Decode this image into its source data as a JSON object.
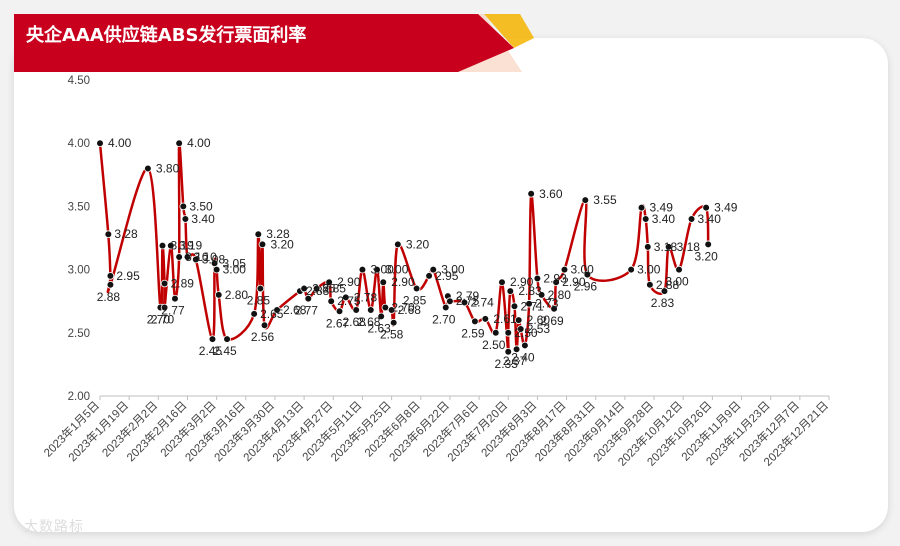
{
  "chart_data": {
    "type": "line",
    "title": "央企AAA供应链ABS发行票面利率",
    "xlabel": "",
    "ylabel": "",
    "ylim": [
      2.0,
      4.5
    ],
    "yticks": [
      "2.00",
      "2.50",
      "3.00",
      "3.50",
      "4.00",
      "4.50"
    ],
    "xticks": [
      "2023年1月5日",
      "2023年1月19日",
      "2023年2月2日",
      "2023年2月16日",
      "2023年3月2日",
      "2023年3月16日",
      "2023年3月30日",
      "2023年4月13日",
      "2023年4月27日",
      "2023年5月11日",
      "2023年5月25日",
      "2023年6月8日",
      "2023年6月22日",
      "2023年7月6日",
      "2023年7月20日",
      "2023年8月3日",
      "2023年8月17日",
      "2023年8月31日",
      "2023年9月14日",
      "2023年9月28日",
      "2023年10月12日",
      "2023年10月26日",
      "2023年11月9日",
      "2023年11月23日",
      "2023年12月7日",
      "2023年12月21日"
    ],
    "grid": false,
    "legend": "none",
    "series_color": "#c00000",
    "points": [
      {
        "d": 0,
        "v": 4.0,
        "label": "4.00"
      },
      {
        "d": 4,
        "v": 3.28,
        "label": "3.28"
      },
      {
        "d": 5,
        "v": 2.95,
        "label": "2.95"
      },
      {
        "d": 5,
        "v": 2.88,
        "label": "2.88"
      },
      {
        "d": 23,
        "v": 3.8,
        "label": "3.80"
      },
      {
        "d": 29,
        "v": 2.7,
        "label": "2.70"
      },
      {
        "d": 30,
        "v": 3.19,
        "label": "3.19"
      },
      {
        "d": 31,
        "v": 2.89,
        "label": "2.89"
      },
      {
        "d": 31,
        "v": 2.7,
        "label": "2.70"
      },
      {
        "d": 34,
        "v": 3.19,
        "label": "3.19"
      },
      {
        "d": 36,
        "v": 2.77,
        "label": "2.77"
      },
      {
        "d": 38,
        "v": 3.1,
        "label": "3.10"
      },
      {
        "d": 38,
        "v": 4.0,
        "label": "4.00"
      },
      {
        "d": 40,
        "v": 3.5,
        "label": "3.50"
      },
      {
        "d": 41,
        "v": 3.4,
        "label": "3.40"
      },
      {
        "d": 42,
        "v": 3.1,
        "label": "3.10"
      },
      {
        "d": 46,
        "v": 3.08,
        "label": "3.08"
      },
      {
        "d": 54,
        "v": 2.45,
        "label": "2.45"
      },
      {
        "d": 55,
        "v": 3.05,
        "label": "3.05"
      },
      {
        "d": 56,
        "v": 3.0,
        "label": "3.00"
      },
      {
        "d": 57,
        "v": 2.8,
        "label": "2.80"
      },
      {
        "d": 61,
        "v": 2.45,
        "label": "2.45"
      },
      {
        "d": 74,
        "v": 2.65,
        "label": "2.65"
      },
      {
        "d": 76,
        "v": 3.28,
        "label": "3.28"
      },
      {
        "d": 77,
        "v": 2.85,
        "label": "2.85"
      },
      {
        "d": 78,
        "v": 3.2,
        "label": "3.20"
      },
      {
        "d": 79,
        "v": 2.56,
        "label": "2.56"
      },
      {
        "d": 85,
        "v": 2.68,
        "label": "2.68"
      },
      {
        "d": 96,
        "v": 2.83,
        "label": "2.83"
      },
      {
        "d": 98,
        "v": 2.85,
        "label": "2.85"
      },
      {
        "d": 100,
        "v": 2.77,
        "label": "2.77"
      },
      {
        "d": 104,
        "v": 2.85,
        "label": "2.85"
      },
      {
        "d": 110,
        "v": 2.9,
        "label": "2.90"
      },
      {
        "d": 111,
        "v": 2.75,
        "label": "2.75"
      },
      {
        "d": 115,
        "v": 2.67,
        "label": "2.67"
      },
      {
        "d": 118,
        "v": 2.78,
        "label": "2.78"
      },
      {
        "d": 123,
        "v": 2.68,
        "label": "2.68"
      },
      {
        "d": 126,
        "v": 3.0,
        "label": "3.00"
      },
      {
        "d": 130,
        "v": 2.68,
        "label": "2.68"
      },
      {
        "d": 133,
        "v": 3.0,
        "label": "3.00"
      },
      {
        "d": 135,
        "v": 2.63,
        "label": "2.63"
      },
      {
        "d": 136,
        "v": 2.9,
        "label": "2.90"
      },
      {
        "d": 137,
        "v": 2.7,
        "label": "2.70"
      },
      {
        "d": 140,
        "v": 2.68,
        "label": "2.68"
      },
      {
        "d": 141,
        "v": 2.58,
        "label": "2.58"
      },
      {
        "d": 143,
        "v": 3.2,
        "label": "3.20"
      },
      {
        "d": 152,
        "v": 2.85,
        "label": "2.85"
      },
      {
        "d": 158,
        "v": 2.95,
        "label": "2.95"
      },
      {
        "d": 160,
        "v": 3.0,
        "label": "3.00"
      },
      {
        "d": 166,
        "v": 2.7,
        "label": "2.70"
      },
      {
        "d": 167,
        "v": 2.79,
        "label": "2.79"
      },
      {
        "d": 168,
        "v": 2.75,
        "label": "2.75"
      },
      {
        "d": 175,
        "v": 2.74,
        "label": "2.74"
      },
      {
        "d": 180,
        "v": 2.59,
        "label": "2.59"
      },
      {
        "d": 185,
        "v": 2.61,
        "label": "2.61"
      },
      {
        "d": 190,
        "v": 2.5,
        "label": "2.50"
      },
      {
        "d": 193,
        "v": 2.9,
        "label": "2.90"
      },
      {
        "d": 196,
        "v": 2.35,
        "label": "2.35"
      },
      {
        "d": 196,
        "v": 2.5,
        "label": "2.50"
      },
      {
        "d": 197,
        "v": 2.83,
        "label": "2.83"
      },
      {
        "d": 199,
        "v": 2.71,
        "label": "2.71"
      },
      {
        "d": 200,
        "v": 2.37,
        "label": "2.37"
      },
      {
        "d": 201,
        "v": 2.6,
        "label": "2.60"
      },
      {
        "d": 202,
        "v": 2.53,
        "label": "2.53"
      },
      {
        "d": 204,
        "v": 2.4,
        "label": "2.40"
      },
      {
        "d": 206,
        "v": 2.73,
        "label": "2.73"
      },
      {
        "d": 207,
        "v": 3.6,
        "label": "3.60"
      },
      {
        "d": 210,
        "v": 2.93,
        "label": "2.93"
      },
      {
        "d": 212,
        "v": 2.8,
        "label": "2.80"
      },
      {
        "d": 218,
        "v": 2.69,
        "label": "2.69"
      },
      {
        "d": 219,
        "v": 2.9,
        "label": "2.90"
      },
      {
        "d": 223,
        "v": 3.0,
        "label": "3.00"
      },
      {
        "d": 233,
        "v": 3.55,
        "label": "3.55"
      },
      {
        "d": 234,
        "v": 2.96,
        "label": "2.96"
      },
      {
        "d": 255,
        "v": 3.0,
        "label": "3.00"
      },
      {
        "d": 260,
        "v": 3.49,
        "label": "3.49"
      },
      {
        "d": 262,
        "v": 3.4,
        "label": "3.40"
      },
      {
        "d": 263,
        "v": 3.18,
        "label": "3.18"
      },
      {
        "d": 264,
        "v": 2.88,
        "label": "2.88"
      },
      {
        "d": 271,
        "v": 2.83,
        "label": "2.83"
      },
      {
        "d": 273,
        "v": 3.18,
        "label": "3.18"
      },
      {
        "d": 278,
        "v": 3.0,
        "label": "3.00"
      },
      {
        "d": 284,
        "v": 3.4,
        "label": "3.40"
      },
      {
        "d": 291,
        "v": 3.49,
        "label": "3.49"
      },
      {
        "d": 292,
        "v": 3.2,
        "label": "3.20"
      }
    ]
  },
  "watermark": "大数路标"
}
